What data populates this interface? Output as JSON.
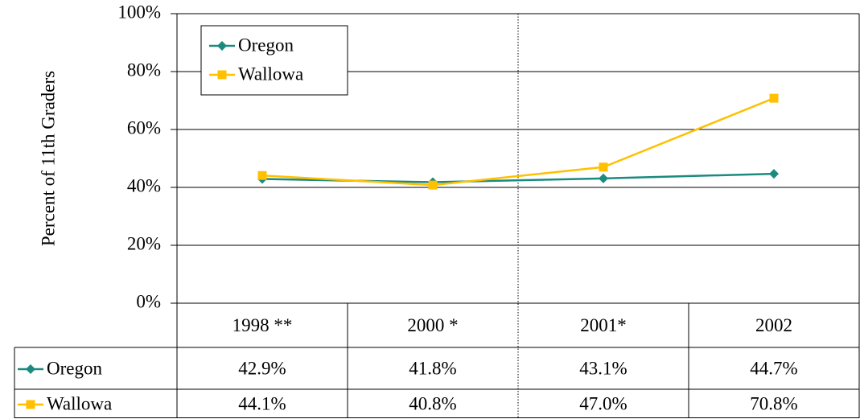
{
  "chart_data": {
    "type": "line",
    "y_label": "Percent of 11th Graders",
    "categories": [
      "1998 **",
      "2000 *",
      "2001*",
      "2002"
    ],
    "series": [
      {
        "name": "Oregon",
        "color": "#1b8a7f",
        "marker": "diamond",
        "values": [
          42.9,
          41.8,
          43.1,
          44.7
        ],
        "value_labels": [
          "42.9%",
          "41.8%",
          "43.1%",
          "44.7%"
        ]
      },
      {
        "name": "Wallowa",
        "color": "#ffc000",
        "marker": "square",
        "values": [
          44.1,
          40.8,
          47.0,
          70.8
        ],
        "value_labels": [
          "44.1%",
          "40.8%",
          "47.0%",
          "70.8%"
        ]
      }
    ],
    "ylim": [
      0,
      100
    ],
    "yticks": [
      {
        "value": 0,
        "label": "0%"
      },
      {
        "value": 20,
        "label": "20%"
      },
      {
        "value": 40,
        "label": "40%"
      },
      {
        "value": 60,
        "label": "60%"
      },
      {
        "value": 80,
        "label": "80%"
      },
      {
        "value": 100,
        "label": "100%"
      }
    ],
    "grid": true,
    "legend": "upper left"
  }
}
